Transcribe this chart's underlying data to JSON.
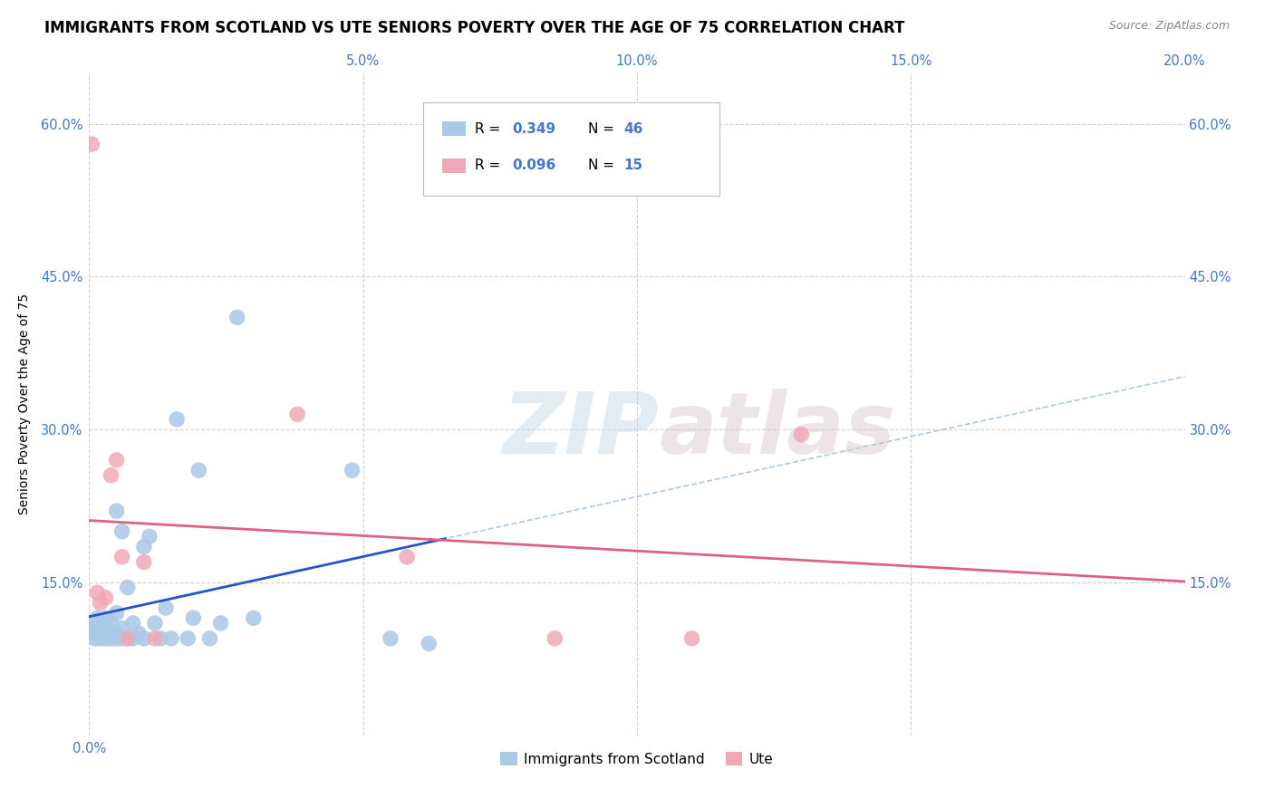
{
  "title": "IMMIGRANTS FROM SCOTLAND VS UTE SENIORS POVERTY OVER THE AGE OF 75 CORRELATION CHART",
  "source": "Source: ZipAtlas.com",
  "ylabel": "Seniors Poverty Over the Age of 75",
  "xlim": [
    0.0,
    0.2
  ],
  "ylim": [
    0.0,
    0.65
  ],
  "xticks": [
    0.0,
    0.05,
    0.1,
    0.15,
    0.2
  ],
  "yticks": [
    0.0,
    0.15,
    0.3,
    0.45,
    0.6
  ],
  "xtick_labels": [
    "0.0%",
    "",
    "",
    "",
    ""
  ],
  "xtick_labels_right": [
    "",
    "5.0%",
    "10.0%",
    "15.0%",
    "20.0%"
  ],
  "ytick_labels_left": [
    "",
    "15.0%",
    "30.0%",
    "45.0%",
    "60.0%"
  ],
  "ytick_labels_right": [
    "",
    "15.0%",
    "30.0%",
    "45.0%",
    "60.0%"
  ],
  "grid_color": "#d0d0d0",
  "background_color": "#ffffff",
  "scotland_color": "#aac8e8",
  "ute_color": "#f0a8b8",
  "scotland_line_color": "#2255cc",
  "ute_line_color": "#e06080",
  "dashed_line_color": "#99bbdd",
  "R_scotland": 0.349,
  "N_scotland": 46,
  "R_ute": 0.096,
  "N_ute": 15,
  "scotland_x": [
    0.0005,
    0.001,
    0.001,
    0.001,
    0.0015,
    0.002,
    0.002,
    0.002,
    0.002,
    0.003,
    0.003,
    0.003,
    0.003,
    0.004,
    0.004,
    0.004,
    0.005,
    0.005,
    0.005,
    0.005,
    0.006,
    0.006,
    0.006,
    0.007,
    0.007,
    0.008,
    0.008,
    0.009,
    0.01,
    0.01,
    0.011,
    0.012,
    0.013,
    0.014,
    0.015,
    0.016,
    0.018,
    0.019,
    0.02,
    0.022,
    0.024,
    0.027,
    0.03,
    0.048,
    0.055,
    0.062
  ],
  "scotland_y": [
    0.105,
    0.095,
    0.1,
    0.11,
    0.115,
    0.095,
    0.1,
    0.105,
    0.11,
    0.095,
    0.1,
    0.105,
    0.115,
    0.095,
    0.1,
    0.11,
    0.095,
    0.1,
    0.12,
    0.22,
    0.095,
    0.105,
    0.2,
    0.095,
    0.145,
    0.095,
    0.11,
    0.1,
    0.095,
    0.185,
    0.195,
    0.11,
    0.095,
    0.125,
    0.095,
    0.31,
    0.095,
    0.115,
    0.26,
    0.095,
    0.11,
    0.41,
    0.115,
    0.26,
    0.095,
    0.09
  ],
  "ute_x": [
    0.0005,
    0.0015,
    0.002,
    0.003,
    0.004,
    0.005,
    0.006,
    0.007,
    0.01,
    0.012,
    0.038,
    0.058,
    0.085,
    0.11,
    0.13
  ],
  "ute_y": [
    0.58,
    0.14,
    0.13,
    0.135,
    0.255,
    0.27,
    0.175,
    0.095,
    0.17,
    0.095,
    0.315,
    0.175,
    0.095,
    0.095,
    0.295
  ],
  "watermark_zip": "ZIP",
  "watermark_atlas": "atlas",
  "legend_color": "#4477cc",
  "axis_tick_color": "#4477cc",
  "title_fontsize": 12,
  "axis_fontsize": 10,
  "tick_fontsize": 10.5
}
